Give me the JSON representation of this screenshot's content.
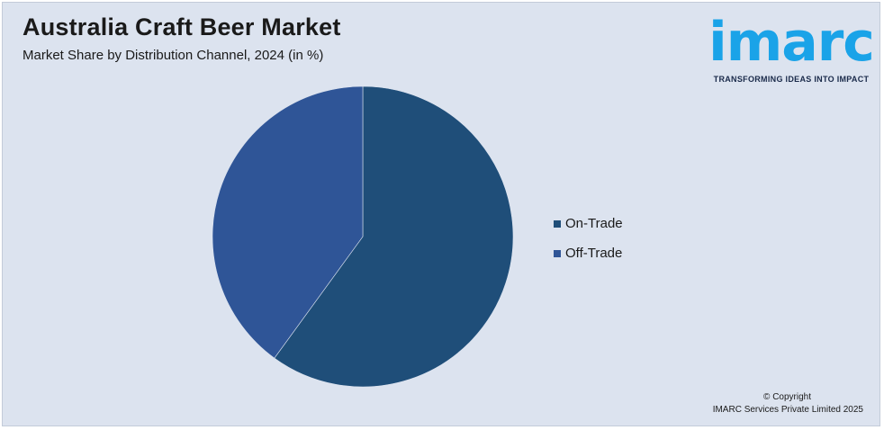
{
  "header": {
    "title": "Australia Craft Beer Market",
    "subtitle": "Market Share by Distribution Channel, 2024 (in %)"
  },
  "logo": {
    "word": "imarc",
    "tagline": "TRANSFORMING IDEAS INTO IMPACT",
    "color": "#1aa3e8"
  },
  "chart_data": {
    "type": "pie",
    "title": "Australia Craft Beer Market",
    "subtitle": "Market Share by Distribution Channel, 2024 (in %)",
    "legend_position": "right",
    "slices": [
      {
        "label": "On-Trade",
        "value": 60,
        "color": "#1f4e79"
      },
      {
        "label": "Off-Trade",
        "value": 40,
        "color": "#2f5597"
      }
    ]
  },
  "footer": {
    "copyright_line1": "© Copyright",
    "copyright_line2": "IMARC Services Private Limited 2025"
  }
}
